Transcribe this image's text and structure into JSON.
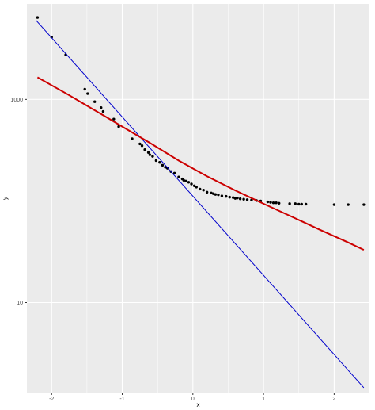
{
  "chart_data": {
    "type": "scatter",
    "title": "",
    "xlabel": "x",
    "ylabel": "y",
    "x_ticks": [
      -2,
      -1,
      0,
      1,
      2
    ],
    "x_tick_labels": [
      "-2",
      "-1",
      "0",
      "1",
      "2"
    ],
    "y_scale": "log10",
    "y_ticks": [
      10,
      1000
    ],
    "y_tick_labels": [
      "10",
      "1000"
    ],
    "xlim": [
      -2.35,
      2.5
    ],
    "ylim": [
      1.3,
      8700
    ],
    "grid": true,
    "legend": "none",
    "colors": {
      "panel": "#ebebeb",
      "grid": "#ffffff",
      "points": "#000000",
      "blue_line": "#0000cc",
      "red_curve": "#cc0000"
    },
    "series": [
      {
        "kind": "points",
        "x": [
          -2.2,
          -2.0,
          -1.8,
          -1.53,
          -1.49,
          -1.39,
          -1.3,
          -1.27,
          -1.12,
          -1.05,
          -0.86,
          -0.75,
          -0.72,
          -0.68,
          -0.63,
          -0.61,
          -0.57,
          -0.52,
          -0.47,
          -0.43,
          -0.39,
          -0.36,
          -0.31,
          -0.26,
          -0.2,
          -0.15,
          -0.13,
          -0.1,
          -0.06,
          -0.02,
          0.02,
          0.05,
          0.1,
          0.15,
          0.2,
          0.26,
          0.29,
          0.32,
          0.36,
          0.41,
          0.47,
          0.52,
          0.57,
          0.6,
          0.63,
          0.67,
          0.72,
          0.77,
          0.83,
          0.9,
          0.96,
          1.06,
          1.1,
          1.14,
          1.18,
          1.22,
          1.37,
          1.45,
          1.5,
          1.54,
          1.6,
          2.0,
          2.2,
          2.42
        ],
        "y": [
          6400,
          4100,
          2750,
          1260,
          1140,
          950,
          830,
          760,
          640,
          540,
          410,
          365,
          350,
          320,
          300,
          285,
          275,
          250,
          240,
          225,
          215,
          210,
          195,
          188,
          172,
          165,
          160,
          157,
          153,
          147,
          141,
          137,
          131,
          128,
          122,
          120,
          118,
          116,
          115,
          112,
          111,
          109,
          108,
          106,
          107,
          105,
          104,
          103,
          102,
          101,
          100,
          98,
          97,
          96,
          96,
          95,
          94,
          94,
          93,
          93,
          93,
          92,
          92,
          92
        ]
      },
      {
        "kind": "straight_line",
        "x": [
          -2.22,
          2.42
        ],
        "y": [
          6000,
          1.45
        ]
      },
      {
        "kind": "curve",
        "x": [
          -2.2,
          -1.8,
          -1.4,
          -1.0,
          -0.6,
          -0.2,
          0.2,
          0.6,
          1.0,
          1.4,
          1.8,
          2.2,
          2.42
        ],
        "y": [
          1650,
          1150,
          790,
          540,
          370,
          250,
          175,
          127,
          94,
          70,
          52,
          39,
          33
        ]
      }
    ]
  }
}
